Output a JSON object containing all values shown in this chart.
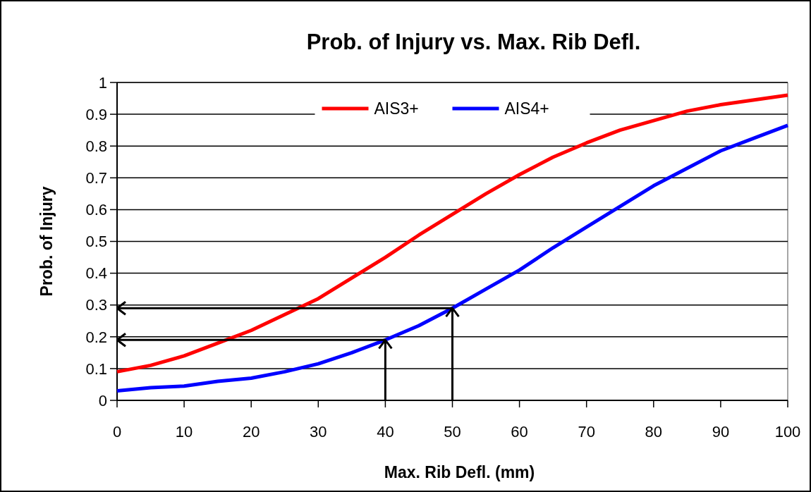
{
  "chart_data": {
    "type": "line",
    "title": "Prob. of Injury vs. Max. Rib Defl.",
    "xlabel": "Max. Rib Defl. (mm)",
    "ylabel": "Prob. of Injury",
    "x": [
      0,
      5,
      10,
      15,
      20,
      25,
      30,
      35,
      40,
      45,
      50,
      55,
      60,
      65,
      70,
      75,
      80,
      85,
      90,
      95,
      100
    ],
    "series": [
      {
        "name": "AIS3+",
        "color": "#ff0000",
        "values": [
          0.09,
          0.11,
          0.14,
          0.18,
          0.22,
          0.27,
          0.32,
          0.385,
          0.45,
          0.52,
          0.585,
          0.65,
          0.71,
          0.765,
          0.81,
          0.85,
          0.88,
          0.91,
          0.93,
          0.945,
          0.96
        ]
      },
      {
        "name": "AIS4+",
        "color": "#0000ff",
        "values": [
          0.03,
          0.04,
          0.045,
          0.06,
          0.07,
          0.09,
          0.115,
          0.15,
          0.19,
          0.235,
          0.29,
          0.35,
          0.41,
          0.48,
          0.545,
          0.61,
          0.675,
          0.73,
          0.785,
          0.825,
          0.865
        ]
      },
      {
        "color": "#000000",
        "x": [
          40,
          40,
          0
        ],
        "values": [
          0,
          0.19,
          0.19
        ]
      },
      {
        "color": "#000000",
        "x": [
          50,
          50,
          0
        ],
        "values": [
          0,
          0.29,
          0.29
        ]
      }
    ],
    "xlim": [
      0,
      100
    ],
    "xticks": [
      0,
      10,
      20,
      30,
      40,
      50,
      60,
      70,
      80,
      90,
      100
    ],
    "ylim": [
      0,
      1
    ],
    "yticks": [
      0,
      0.1,
      0.2,
      0.3,
      0.4,
      0.5,
      0.6,
      0.7,
      0.8,
      0.9,
      1
    ],
    "grid": "y",
    "legend": "top",
    "marker": "none",
    "line_style": "solid"
  }
}
